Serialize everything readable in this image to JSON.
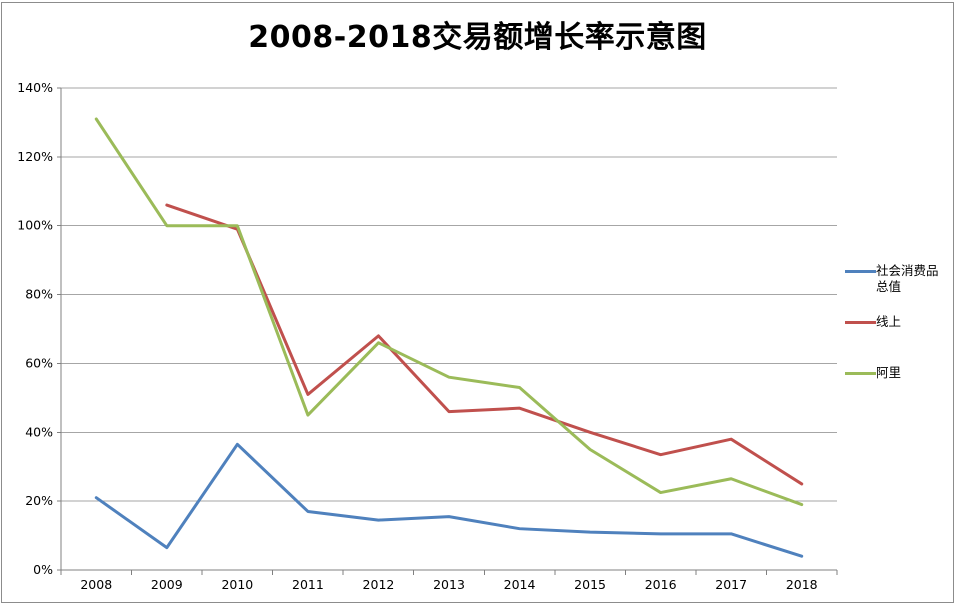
{
  "title": "2008-2018交易额增长率示意图",
  "colors": {
    "background": "#FFFFFF",
    "outer_border": "#8C8C8C",
    "gridline": "#A6A6A6",
    "axis": "#808080",
    "tick": "#808080",
    "text": "#000000"
  },
  "chart_data": {
    "type": "line",
    "title": "2008-2018交易额增长率示意图",
    "xlabel": "",
    "ylabel": "",
    "categories": [
      "2008",
      "2009",
      "2010",
      "2011",
      "2012",
      "2013",
      "2014",
      "2015",
      "2016",
      "2017",
      "2018"
    ],
    "series": [
      {
        "name": "社会消费品总值",
        "color": "#4F81BD",
        "values": [
          21,
          6.5,
          36.5,
          17,
          14.5,
          15.5,
          12,
          11,
          10.5,
          10.5,
          4
        ]
      },
      {
        "name": "线上",
        "color": "#C0504D",
        "values": [
          null,
          106,
          99,
          51,
          68,
          46,
          47,
          40,
          33.5,
          38,
          25
        ]
      },
      {
        "name": "阿里",
        "color": "#9BBB59",
        "values": [
          131,
          100,
          100,
          45,
          66,
          56,
          53,
          35,
          22.5,
          26.5,
          19
        ]
      }
    ],
    "ylim": [
      0,
      140
    ],
    "ytick_step": 20,
    "ytick_labels": [
      "0%",
      "20%",
      "40%",
      "60%",
      "80%",
      "100%",
      "120%",
      "140%"
    ],
    "unit": "percent",
    "grid": true,
    "legend_position": "right"
  }
}
